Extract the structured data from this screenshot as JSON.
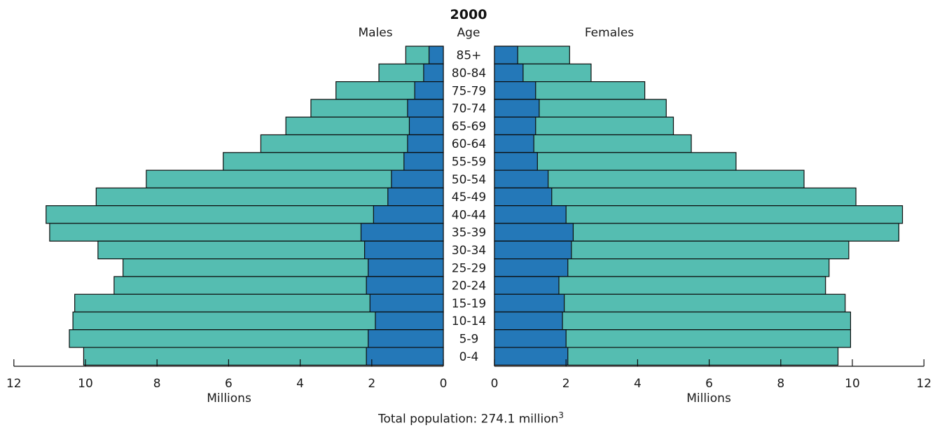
{
  "chart_data": {
    "type": "bar",
    "title": "2000",
    "age_header": "Age",
    "left_header": "Males",
    "right_header": "Females",
    "xlabel_left": "Millions",
    "xlabel_right": "Millions",
    "xlim": [
      0,
      12
    ],
    "xticks": [
      0,
      2,
      4,
      6,
      8,
      10,
      12
    ],
    "grid": false,
    "categories": [
      "85+",
      "80-84",
      "75-79",
      "70-74",
      "65-69",
      "60-64",
      "55-59",
      "50-54",
      "45-49",
      "40-44",
      "35-39",
      "30-34",
      "25-29",
      "20-24",
      "15-19",
      "10-14",
      "5-9",
      "0-4"
    ],
    "series": [
      {
        "side": "left",
        "segment": "inner",
        "values": [
          0.4,
          0.55,
          0.8,
          1.0,
          0.95,
          1.0,
          1.1,
          1.45,
          1.55,
          1.95,
          2.3,
          2.2,
          2.1,
          2.15,
          2.05,
          1.9,
          2.1,
          2.15
        ]
      },
      {
        "side": "left",
        "segment": "total",
        "values": [
          1.05,
          1.8,
          3.0,
          3.7,
          4.4,
          5.1,
          6.15,
          8.3,
          9.7,
          11.1,
          11.0,
          9.65,
          8.95,
          9.2,
          10.3,
          10.35,
          10.45,
          10.05
        ]
      },
      {
        "side": "right",
        "segment": "inner",
        "values": [
          0.65,
          0.8,
          1.15,
          1.25,
          1.15,
          1.1,
          1.2,
          1.5,
          1.6,
          2.0,
          2.2,
          2.15,
          2.05,
          1.8,
          1.95,
          1.9,
          2.0,
          2.05
        ]
      },
      {
        "side": "right",
        "segment": "total",
        "values": [
          2.1,
          2.7,
          4.2,
          4.8,
          5.0,
          5.5,
          6.75,
          8.65,
          10.1,
          11.4,
          11.3,
          9.9,
          9.35,
          9.25,
          9.8,
          9.95,
          9.95,
          9.6
        ]
      }
    ],
    "colors": {
      "inner": "#2478b8",
      "outer": "#55bdb1",
      "stroke": "#0d0d0d"
    }
  },
  "footnote": {
    "text": "Total population:  274.1 million",
    "sup": "3"
  }
}
